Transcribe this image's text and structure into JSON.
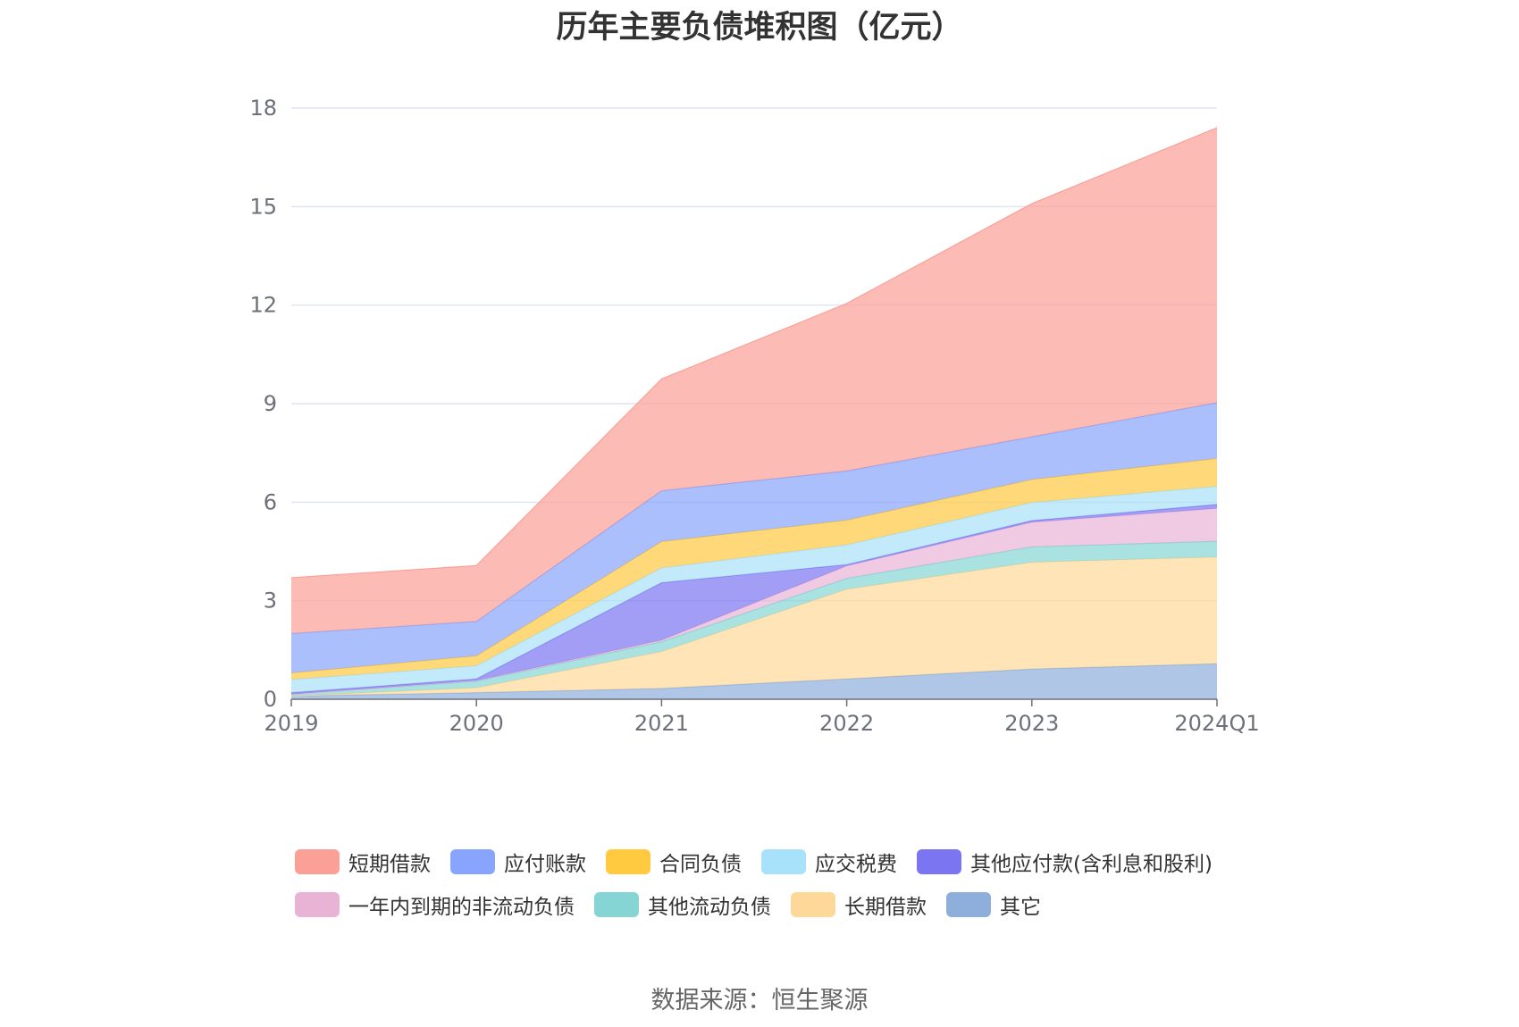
{
  "chart_data": {
    "type": "area",
    "stacked": true,
    "title": "历年主要负债堆积图（亿元）",
    "categories": [
      "2019",
      "2020",
      "2021",
      "2022",
      "2023",
      "2024Q1"
    ],
    "ylim": [
      0,
      18
    ],
    "yticks": [
      0,
      3,
      6,
      9,
      12,
      15,
      18
    ],
    "grid": true,
    "legend_position": "bottom",
    "series": [
      {
        "name": "其它",
        "color": "#8eaedc",
        "values": [
          0.1,
          0.2,
          0.33,
          0.62,
          0.92,
          1.08
        ]
      },
      {
        "name": "长期借款",
        "color": "#fdd899",
        "values": [
          0.0,
          0.15,
          1.12,
          2.73,
          3.25,
          3.25
        ]
      },
      {
        "name": "其他流动负债",
        "color": "#84d5d4",
        "values": [
          0.05,
          0.2,
          0.3,
          0.33,
          0.47,
          0.48
        ]
      },
      {
        "name": "一年内到期的非流动负债",
        "color": "#e9b3d6",
        "values": [
          0.0,
          0.02,
          0.05,
          0.38,
          0.75,
          1.0
        ]
      },
      {
        "name": "其他应付款(含利息和股利)",
        "color": "#7b75f2",
        "values": [
          0.05,
          0.05,
          1.75,
          0.04,
          0.05,
          0.12
        ]
      },
      {
        "name": "应交税费",
        "color": "#a8e1fa",
        "values": [
          0.4,
          0.4,
          0.45,
          0.6,
          0.55,
          0.55
        ]
      },
      {
        "name": "合同负债",
        "color": "#ffc940",
        "values": [
          0.2,
          0.3,
          0.8,
          0.75,
          0.7,
          0.85
        ]
      },
      {
        "name": "应付账款",
        "color": "#88a4fc",
        "values": [
          1.2,
          1.05,
          1.55,
          1.5,
          1.3,
          1.7
        ]
      },
      {
        "name": "短期借款",
        "color": "#fba096",
        "values": [
          1.7,
          1.7,
          3.4,
          5.1,
          7.1,
          8.37
        ]
      }
    ]
  },
  "legend": [
    {
      "label": "短期借款",
      "color": "#fba096"
    },
    {
      "label": "应付账款",
      "color": "#88a4fc"
    },
    {
      "label": "合同负债",
      "color": "#ffc940"
    },
    {
      "label": "应交税费",
      "color": "#a8e1fa"
    },
    {
      "label": "其他应付款(含利息和股利)",
      "color": "#7b75f2"
    },
    {
      "label": "一年内到期的非流动负债",
      "color": "#e9b3d6"
    },
    {
      "label": "其他流动负债",
      "color": "#84d5d4"
    },
    {
      "label": "长期借款",
      "color": "#fdd899"
    },
    {
      "label": "其它",
      "color": "#8eaedc"
    }
  ],
  "source": "数据来源：恒生聚源"
}
